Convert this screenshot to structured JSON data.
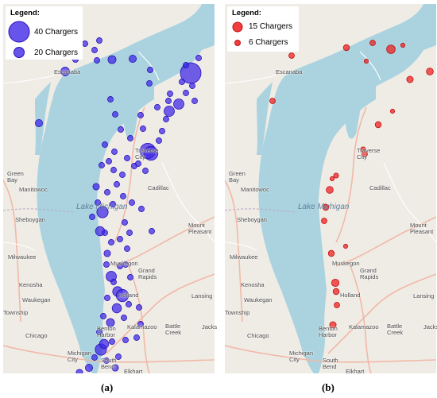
{
  "colors": {
    "land": "#efece6",
    "water": "#aad3df",
    "road_major": "#f2b8a6",
    "road_minor": "#ffffff",
    "border": "#b7a6c6",
    "panel_a_marker": "#3b24e6",
    "panel_b_marker": "#ee1b1b"
  },
  "panel_a": {
    "caption": "(a)",
    "legend": {
      "title": "Legend:",
      "items": [
        {
          "label": "40 Chargers",
          "chargers": 40
        },
        {
          "label": "20 Chargers",
          "chargers": 20
        }
      ]
    }
  },
  "panel_b": {
    "caption": "(b)",
    "legend": {
      "title": "Legend:",
      "items": [
        {
          "label": "15 Chargers",
          "chargers": 15
        },
        {
          "label": "6 Chargers",
          "chargers": 6
        }
      ]
    }
  },
  "lake_label": "Lake Michigan",
  "places": {
    "escanaba": "Escanaba",
    "green_bay": "Green\nBay",
    "manitowoc": "Manitowoc",
    "sheboygan": "Sheboygan",
    "milwaukee": "Milwaukee",
    "kenosha": "Kenosha",
    "waukegan": "Waukegan",
    "township": "Township",
    "chicago": "Chicago",
    "michigan_city": "Michigan\nCity",
    "south_bend": "South\nBend",
    "elkhart": "Elkhart",
    "benton_harbor": "Benton\nHarbor",
    "kalamazoo": "Kalamazoo",
    "battle_creek": "Battle\nCreek",
    "jackson": "Jacks",
    "lansing": "Lansing",
    "holland": "Holland",
    "grand_rapids": "Grand\nRapids",
    "muskegon": "Muskegon",
    "mount_pleasant": "Mount\nPleasant",
    "cadillac": "Cadillac",
    "traverse_city": "Traverse\nCity"
  }
}
